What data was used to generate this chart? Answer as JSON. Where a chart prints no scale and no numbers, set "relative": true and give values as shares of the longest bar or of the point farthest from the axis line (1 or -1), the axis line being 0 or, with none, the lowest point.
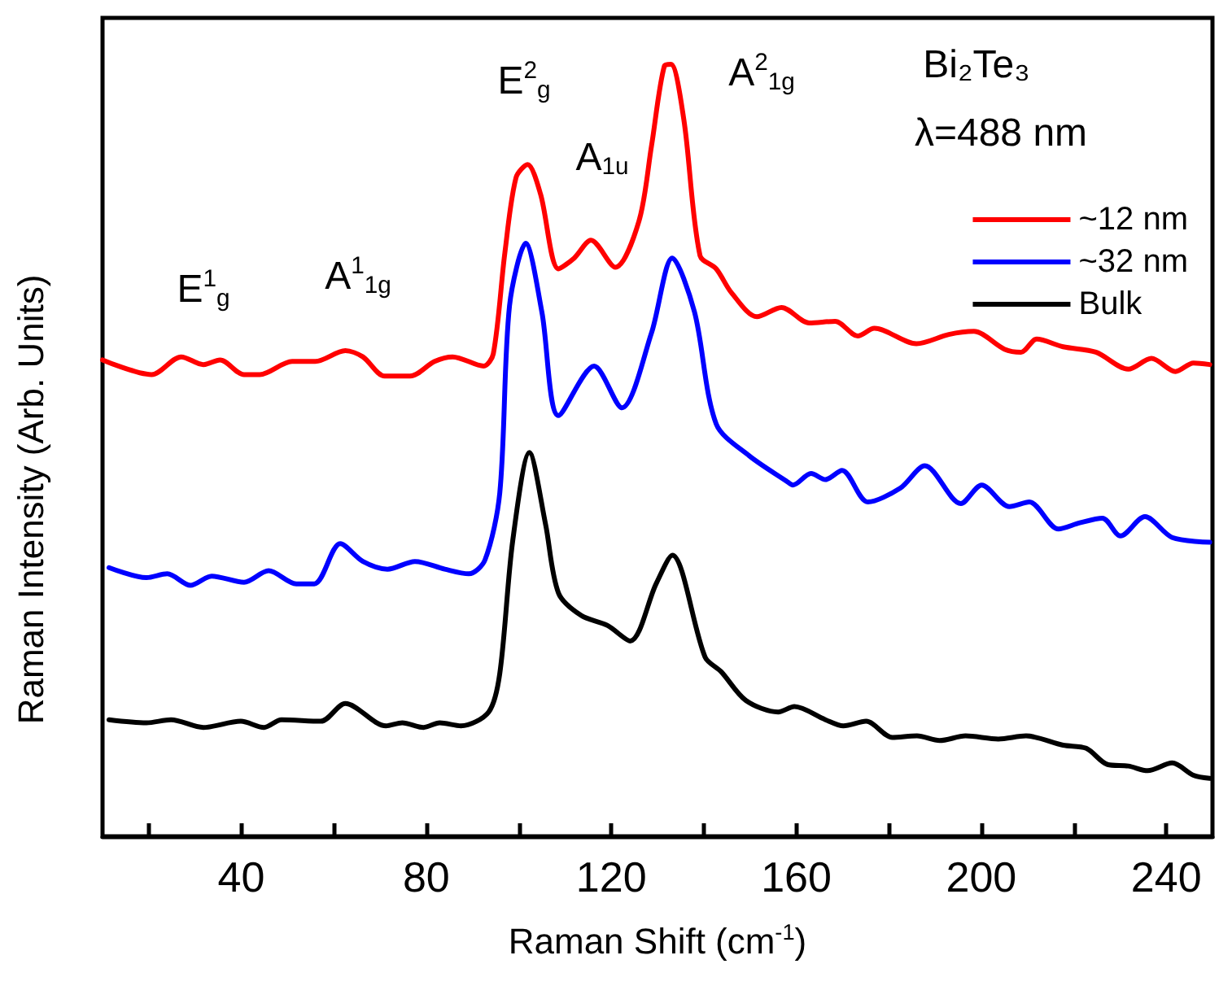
{
  "chart_data": {
    "type": "line",
    "relative": true,
    "xlabel": "Raman Shift (cm$^{-1}$)",
    "ylabel": "Raman Intensity (Arb. Units)",
    "legend_title": "Bi₂Te₃",
    "xlim": [
      10,
      250
    ],
    "xticks": [
      {
        "value": 20,
        "label": null
      },
      40,
      {
        "value": 60,
        "label": null
      },
      80,
      {
        "value": 100,
        "label": null
      },
      120,
      {
        "value": 140,
        "label": null
      },
      160,
      {
        "value": 180,
        "label": null
      },
      200,
      {
        "value": 220,
        "label": null
      },
      240
    ],
    "tick_labels": "x",
    "grid": false,
    "legend": "top right",
    "marker": "none",
    "line_style": "solid",
    "annotations": [
      "λ=488 nm",
      "E$^{1}$$_{g}$",
      "A$^{1}$$_{1g}$",
      "E$^{2}$$_{g}$",
      "A$_{1u}$",
      "A$^{2}$$_{1g}$"
    ],
    "series": [
      {
        "name": "~12 nm",
        "color": "#ff0000",
        "x": [
          10,
          20.6,
          27,
          31.8,
          35.4,
          40.6,
          44,
          51,
          56,
          62.5,
          66.3,
          71,
          76.5,
          81.8,
          85.7,
          92.4,
          94.5,
          97,
          99.4,
          101.9,
          104.7,
          108.6,
          112,
          115.6,
          120.9,
          126,
          128.7,
          131.5,
          132.9,
          135.7,
          139.2,
          142.7,
          146,
          151.5,
          156.8,
          162.8,
          168.4,
          173.3,
          176.9,
          186,
          193,
          198.4,
          205,
          208.6,
          212,
          217.7,
          224.8,
          231.8,
          236.8,
          242,
          245.9,
          249.4
        ],
        "values": [
          0.617,
          0.598,
          0.621,
          0.611,
          0.617,
          0.598,
          0.598,
          0.615,
          0.615,
          0.629,
          0.621,
          0.596,
          0.596,
          0.615,
          0.621,
          0.609,
          0.625,
          0.756,
          0.853,
          0.87,
          0.832,
          0.735,
          0.749,
          0.772,
          0.737,
          0.797,
          0.894,
          0.998,
          1.0,
          0.928,
          0.752,
          0.735,
          0.704,
          0.673,
          0.685,
          0.665,
          0.667,
          0.648,
          0.658,
          0.638,
          0.65,
          0.654,
          0.631,
          0.627,
          0.644,
          0.634,
          0.627,
          0.605,
          0.619,
          0.602,
          0.613,
          0.611
        ]
      },
      {
        "name": "~32 nm",
        "color": "#0000ff",
        "x": [
          11.4,
          19.5,
          24,
          29,
          33.6,
          40.6,
          45.9,
          51.9,
          55.8,
          61.4,
          66.3,
          71.6,
          77.6,
          84,
          89.2,
          92.7,
          95.9,
          98,
          101.5,
          105,
          108.6,
          116.3,
          122.3,
          128.7,
          133.2,
          138,
          142.7,
          149.8,
          157.9,
          159.3,
          163.2,
          166.3,
          169.9,
          175.5,
          182.5,
          187.8,
          195.6,
          200.1,
          206.1,
          210.4,
          216.7,
          221.3,
          226.2,
          230.1,
          235.4,
          241.3,
          249.4
        ],
        "values": [
          0.348,
          0.335,
          0.34,
          0.325,
          0.337,
          0.329,
          0.344,
          0.327,
          0.327,
          0.379,
          0.356,
          0.346,
          0.356,
          0.346,
          0.34,
          0.358,
          0.445,
          0.687,
          0.768,
          0.679,
          0.545,
          0.609,
          0.555,
          0.652,
          0.749,
          0.679,
          0.534,
          0.493,
          0.46,
          0.455,
          0.47,
          0.462,
          0.474,
          0.433,
          0.451,
          0.48,
          0.431,
          0.455,
          0.427,
          0.433,
          0.398,
          0.406,
          0.412,
          0.389,
          0.414,
          0.387,
          0.381
        ]
      },
      {
        "name": "Bulk",
        "color": "#000000",
        "x": [
          11.4,
          19.5,
          24.8,
          31.8,
          39.9,
          44.9,
          48.7,
          57.2,
          62.5,
          71.3,
          74.8,
          79.4,
          82.9,
          87.5,
          93.5,
          95.9,
          98.7,
          102.3,
          105.8,
          108.6,
          113.5,
          119.2,
          124.1,
          129.7,
          133.2,
          140.3,
          143.8,
          149.1,
          156.1,
          159.6,
          166.3,
          170.2,
          175.1,
          180.8,
          186.1,
          191,
          196.6,
          203.7,
          209.7,
          217.7,
          222.7,
          227.3,
          231.8,
          236,
          241.3,
          245.9,
          249.4
        ],
        "values": [
          0.151,
          0.147,
          0.151,
          0.141,
          0.149,
          0.141,
          0.151,
          0.149,
          0.172,
          0.143,
          0.147,
          0.141,
          0.147,
          0.143,
          0.161,
          0.211,
          0.383,
          0.497,
          0.404,
          0.315,
          0.286,
          0.273,
          0.253,
          0.327,
          0.364,
          0.232,
          0.213,
          0.176,
          0.161,
          0.168,
          0.151,
          0.143,
          0.149,
          0.128,
          0.13,
          0.124,
          0.13,
          0.126,
          0.13,
          0.118,
          0.114,
          0.093,
          0.091,
          0.085,
          0.095,
          0.079,
          0.075
        ]
      }
    ]
  }
}
